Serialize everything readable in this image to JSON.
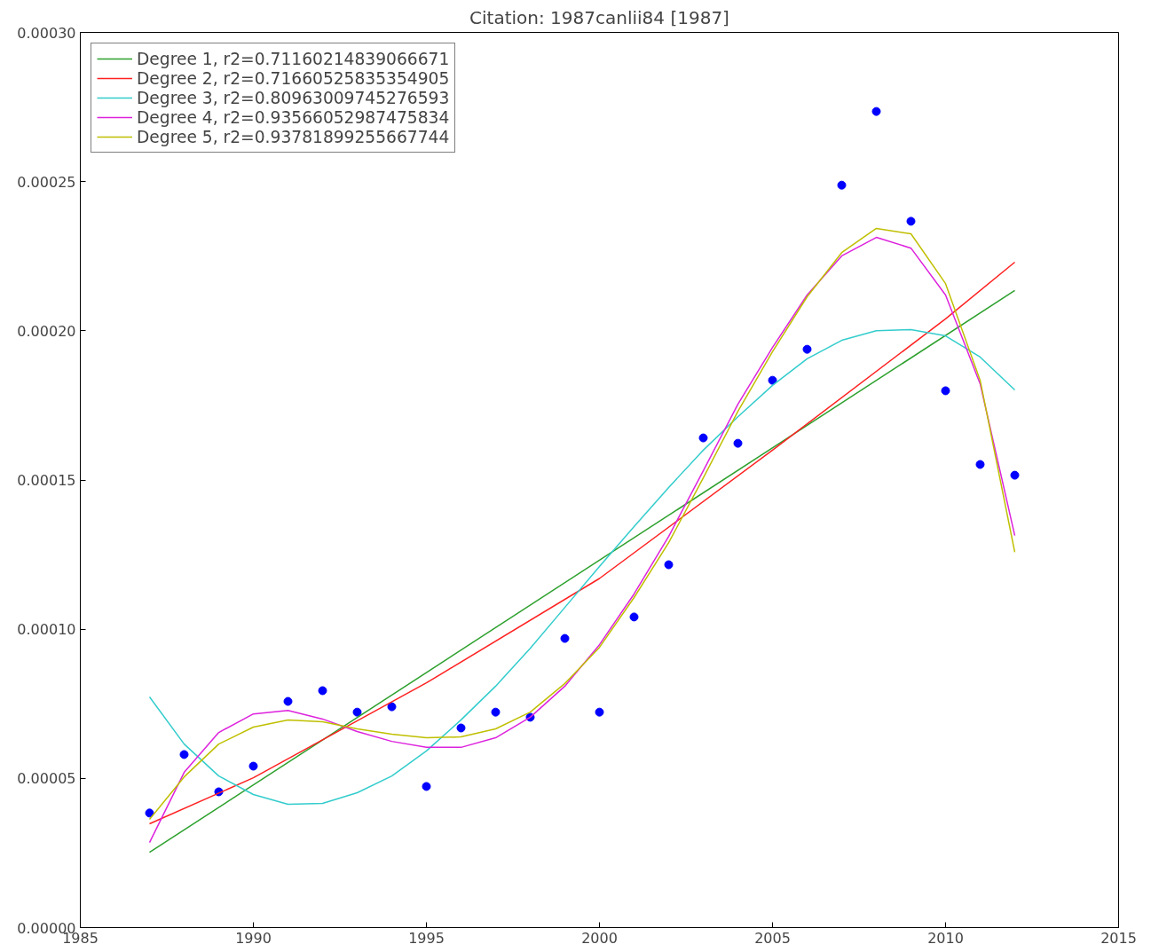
{
  "chart_data": {
    "type": "scatter",
    "title": "Citation: 1987canlii84 [1987]",
    "xlim": [
      1985,
      2015
    ],
    "xticks": [
      1985,
      1990,
      1995,
      2000,
      2005,
      2010,
      2015
    ],
    "ylim": [
      0,
      0.0003
    ],
    "yticks": [
      {
        "value": 0,
        "label": "0.00000"
      },
      {
        "value": 5e-05,
        "label": "0.00005"
      },
      {
        "value": 0.0001,
        "label": "0.00010"
      },
      {
        "value": 0.00015,
        "label": "0.00015"
      },
      {
        "value": 0.0002,
        "label": "0.00020"
      },
      {
        "value": 0.00025,
        "label": "0.00025"
      },
      {
        "value": 0.0003,
        "label": "0.00030"
      }
    ],
    "grid": false,
    "legend": "top left",
    "x": [
      1987,
      1988,
      1989,
      1990,
      1991,
      1992,
      1993,
      1994,
      1995,
      1996,
      1997,
      1998,
      1999,
      2000,
      2001,
      2002,
      2003,
      2004,
      2005,
      2006,
      2007,
      2008,
      2009,
      2010,
      2011,
      2012
    ],
    "series": [
      {
        "marker": "circle",
        "color": "#0000ff",
        "values": [
          3.84e-05,
          5.8e-05,
          4.55e-05,
          5.41e-05,
          7.58e-05,
          7.94e-05,
          7.22e-05,
          7.4e-05,
          4.73e-05,
          6.69e-05,
          7.22e-05,
          7.05e-05,
          9.69e-05,
          7.22e-05,
          0.0001041,
          0.0001216,
          0.0001641,
          0.0001623,
          0.0001834,
          0.0001938,
          0.0002488,
          0.0002735,
          0.0002367,
          0.0001799,
          0.0001552,
          0.0001516
        ]
      },
      {
        "type": "line",
        "name": "Degree 1, r2=0.71160214839066671",
        "color": "#2ca02c",
        "x": [
          1987,
          2012
        ],
        "values": [
          2.52e-05,
          0.0002135
        ]
      },
      {
        "type": "line",
        "name": "Degree 2, r2=0.71660525835354905",
        "color": "#ff2020",
        "x": [
          1987,
          1990,
          1995,
          2000,
          2005,
          2010,
          2012
        ],
        "values": [
          3.48e-05,
          5.02e-05,
          8.2e-05,
          0.000117,
          0.00016,
          0.000204,
          0.000223
        ]
      },
      {
        "type": "line",
        "name": "Degree 3, r2=0.80963009745276593",
        "color": "#33cccc",
        "values": [
          7.73e-05,
          6.15e-05,
          5.08e-05,
          4.46e-05,
          4.13e-05,
          4.16e-05,
          4.52e-05,
          5.08e-05,
          5.92e-05,
          6.96e-05,
          8.09e-05,
          9.36e-05,
          0.0001073,
          0.000121,
          0.0001344,
          0.0001475,
          0.00016,
          0.0001712,
          0.0001817,
          0.0001906,
          0.0001968,
          0.0002,
          0.0002004,
          0.0001983,
          0.0001912,
          0.0001802
        ]
      },
      {
        "type": "line",
        "name": "Degree 4, r2=0.93566052987475834",
        "color": "#dd22dd",
        "values": [
          2.85e-05,
          5.2e-05,
          6.54e-05,
          7.16e-05,
          7.28e-05,
          6.99e-05,
          6.57e-05,
          6.24e-05,
          6.04e-05,
          6.04e-05,
          6.36e-05,
          7.05e-05,
          8.09e-05,
          9.48e-05,
          0.0001118,
          0.0001311,
          0.0001531,
          0.0001754,
          0.0001944,
          0.000212,
          0.0002251,
          0.0002313,
          0.0002277,
          0.000212,
          0.0001822,
          0.0001314
        ]
      },
      {
        "type": "line",
        "name": "Degree 5, r2=0.93781899255667744",
        "color": "#bfbf00",
        "values": [
          3.63e-05,
          5.05e-05,
          6.15e-05,
          6.72e-05,
          6.96e-05,
          6.9e-05,
          6.66e-05,
          6.48e-05,
          6.36e-05,
          6.39e-05,
          6.66e-05,
          7.22e-05,
          8.18e-05,
          9.39e-05,
          0.0001106,
          0.000129,
          0.0001507,
          0.000173,
          0.000193,
          0.0002114,
          0.0002262,
          0.0002343,
          0.0002325,
          0.0002158,
          0.0001834,
          0.0001258
        ]
      }
    ]
  }
}
